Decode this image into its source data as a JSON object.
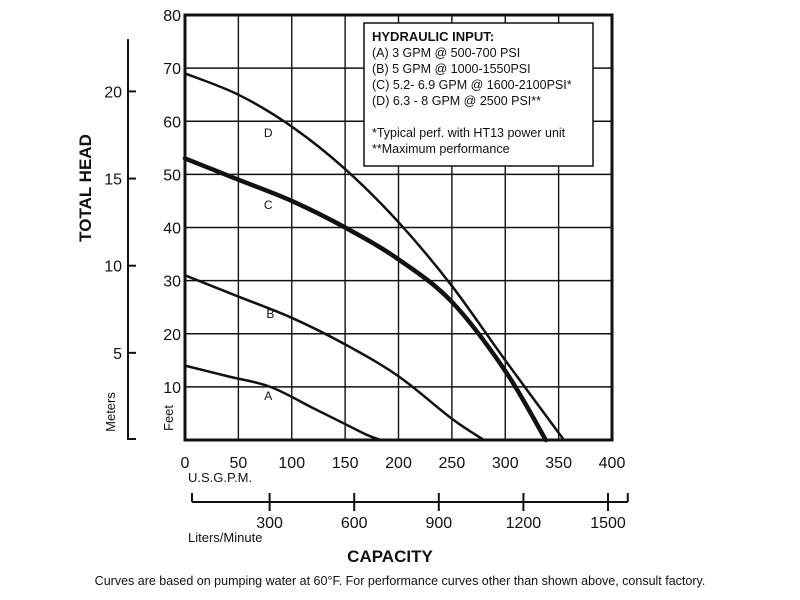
{
  "chart_data": {
    "type": "line",
    "xlabel": "CAPACITY",
    "ylabel": "TOTAL HEAD",
    "x_unit_primary": "U.S.G.P.M.",
    "x_unit_secondary": "Liters/Minute",
    "y_unit_primary": "Feet",
    "y_unit_secondary": "Meters",
    "xlim": [
      0,
      400
    ],
    "ylim": [
      0,
      80
    ],
    "x_ticks": [
      0,
      50,
      100,
      150,
      200,
      250,
      300,
      350,
      400
    ],
    "y_ticks": [
      10,
      20,
      30,
      40,
      50,
      60,
      70,
      80
    ],
    "secondary_x_ticks": [
      300,
      600,
      900,
      1200,
      1500
    ],
    "secondary_y_ticks": [
      5,
      10,
      15,
      20
    ],
    "grid": true,
    "series": [
      {
        "name": "A",
        "x": [
          0,
          40,
          80,
          120,
          150,
          170,
          183
        ],
        "y": [
          14,
          12,
          10,
          6,
          3,
          1,
          0
        ]
      },
      {
        "name": "B",
        "x": [
          0,
          50,
          100,
          150,
          200,
          250,
          280
        ],
        "y": [
          31,
          27,
          23,
          18,
          12,
          4,
          0
        ]
      },
      {
        "name": "C",
        "x": [
          0,
          50,
          100,
          150,
          200,
          250,
          300,
          338
        ],
        "y": [
          53,
          49,
          45,
          40,
          34,
          26,
          13,
          0
        ]
      },
      {
        "name": "D",
        "x": [
          0,
          50,
          100,
          150,
          200,
          250,
          300,
          355
        ],
        "y": [
          69,
          65,
          59,
          51,
          41,
          29,
          15,
          0
        ]
      }
    ],
    "legend": {
      "position": "top-right",
      "title": "HYDRAULIC INPUT:",
      "lines": [
        "(A) 3 GPM @ 500-700 PSI",
        "(B) 5 GPM @ 1000-1550PSI",
        "(C) 5.2- 6.9 GPM @ 1600-2100PSI*",
        "(D) 6.3 - 8 GPM @ 2500 PSI**"
      ],
      "notes": [
        "*Typical perf. with HT13 power unit",
        "**Maximum performance"
      ]
    },
    "footnote": "Curves are based on pumping water at 60°F. For performance curves other than shown above, consult factory."
  }
}
